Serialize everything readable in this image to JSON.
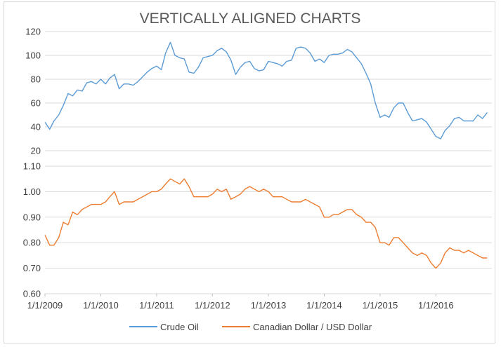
{
  "chart_data": [
    {
      "type": "line",
      "title": "VERTICALLY ALIGNED CHARTS",
      "xlabel": "",
      "ylabel": "",
      "ylim": [
        20,
        120
      ],
      "yticks": [
        "20",
        "40",
        "60",
        "80",
        "100",
        "120"
      ],
      "grid": true,
      "series": [
        {
          "name": "Crude Oil",
          "color": "#5b9bd5",
          "x": [
            "2009-01-01",
            "2009-02-01",
            "2009-03-01",
            "2009-04-01",
            "2009-05-01",
            "2009-06-01",
            "2009-07-01",
            "2009-08-01",
            "2009-09-01",
            "2009-10-01",
            "2009-11-01",
            "2009-12-01",
            "2010-01-01",
            "2010-02-01",
            "2010-03-01",
            "2010-04-01",
            "2010-05-01",
            "2010-06-01",
            "2010-07-01",
            "2010-08-01",
            "2010-09-01",
            "2010-10-01",
            "2010-11-01",
            "2010-12-01",
            "2011-01-01",
            "2011-02-01",
            "2011-03-01",
            "2011-04-01",
            "2011-05-01",
            "2011-06-01",
            "2011-07-01",
            "2011-08-01",
            "2011-09-01",
            "2011-10-01",
            "2011-11-01",
            "2011-12-01",
            "2012-01-01",
            "2012-02-01",
            "2012-03-01",
            "2012-04-01",
            "2012-05-01",
            "2012-06-01",
            "2012-07-01",
            "2012-08-01",
            "2012-09-01",
            "2012-10-01",
            "2012-11-01",
            "2012-12-01",
            "2013-01-01",
            "2013-02-01",
            "2013-03-01",
            "2013-04-01",
            "2013-05-01",
            "2013-06-01",
            "2013-07-01",
            "2013-08-01",
            "2013-09-01",
            "2013-10-01",
            "2013-11-01",
            "2013-12-01",
            "2014-01-01",
            "2014-02-01",
            "2014-03-01",
            "2014-04-01",
            "2014-05-01",
            "2014-06-01",
            "2014-07-01",
            "2014-08-01",
            "2014-09-01",
            "2014-10-01",
            "2014-11-01",
            "2014-12-01",
            "2015-01-01",
            "2015-02-01",
            "2015-03-01",
            "2015-04-01",
            "2015-05-01",
            "2015-06-01",
            "2015-07-01",
            "2015-08-01",
            "2015-09-01",
            "2015-10-01",
            "2015-11-01",
            "2015-12-01",
            "2016-01-01",
            "2016-02-01",
            "2016-03-01",
            "2016-04-01",
            "2016-05-01",
            "2016-06-01",
            "2016-07-01",
            "2016-08-01",
            "2016-09-01",
            "2016-10-01",
            "2016-11-01",
            "2016-12-01"
          ],
          "values": [
            44,
            38,
            45,
            50,
            58,
            68,
            66,
            71,
            70,
            77,
            78,
            76,
            80,
            76,
            81,
            84,
            72,
            76,
            76,
            75,
            78,
            82,
            86,
            89,
            91,
            88,
            102,
            111,
            100,
            98,
            97,
            86,
            85,
            90,
            98,
            99,
            100,
            104,
            106,
            103,
            96,
            84,
            90,
            94,
            95,
            89,
            87,
            88,
            95,
            94,
            93,
            91,
            95,
            96,
            106,
            107,
            106,
            102,
            95,
            97,
            94,
            100,
            101,
            101,
            102,
            105,
            103,
            98,
            93,
            85,
            76,
            60,
            48,
            50,
            48,
            56,
            60,
            60,
            52,
            45,
            46,
            47,
            44,
            38,
            32,
            30,
            37,
            41,
            47,
            48,
            45,
            45,
            45,
            50,
            47,
            52
          ]
        }
      ]
    },
    {
      "type": "line",
      "xlabel": "",
      "ylabel": "",
      "ylim": [
        0.6,
        1.1
      ],
      "yticks": [
        "0.60",
        "0.70",
        "0.80",
        "0.90",
        "1.00",
        "1.10"
      ],
      "xticks": [
        "1/1/2009",
        "1/1/2010",
        "1/1/2011",
        "1/1/2012",
        "1/1/2013",
        "1/1/2014",
        "1/1/2015",
        "1/1/2016"
      ],
      "grid": true,
      "series": [
        {
          "name": "Canadian Dollar / USD Dollar",
          "color": "#ed7d31",
          "x": [
            "2009-01-01",
            "2009-02-01",
            "2009-03-01",
            "2009-04-01",
            "2009-05-01",
            "2009-06-01",
            "2009-07-01",
            "2009-08-01",
            "2009-09-01",
            "2009-10-01",
            "2009-11-01",
            "2009-12-01",
            "2010-01-01",
            "2010-02-01",
            "2010-03-01",
            "2010-04-01",
            "2010-05-01",
            "2010-06-01",
            "2010-07-01",
            "2010-08-01",
            "2010-09-01",
            "2010-10-01",
            "2010-11-01",
            "2010-12-01",
            "2011-01-01",
            "2011-02-01",
            "2011-03-01",
            "2011-04-01",
            "2011-05-01",
            "2011-06-01",
            "2011-07-01",
            "2011-08-01",
            "2011-09-01",
            "2011-10-01",
            "2011-11-01",
            "2011-12-01",
            "2012-01-01",
            "2012-02-01",
            "2012-03-01",
            "2012-04-01",
            "2012-05-01",
            "2012-06-01",
            "2012-07-01",
            "2012-08-01",
            "2012-09-01",
            "2012-10-01",
            "2012-11-01",
            "2012-12-01",
            "2013-01-01",
            "2013-02-01",
            "2013-03-01",
            "2013-04-01",
            "2013-05-01",
            "2013-06-01",
            "2013-07-01",
            "2013-08-01",
            "2013-09-01",
            "2013-10-01",
            "2013-11-01",
            "2013-12-01",
            "2014-01-01",
            "2014-02-01",
            "2014-03-01",
            "2014-04-01",
            "2014-05-01",
            "2014-06-01",
            "2014-07-01",
            "2014-08-01",
            "2014-09-01",
            "2014-10-01",
            "2014-11-01",
            "2014-12-01",
            "2015-01-01",
            "2015-02-01",
            "2015-03-01",
            "2015-04-01",
            "2015-05-01",
            "2015-06-01",
            "2015-07-01",
            "2015-08-01",
            "2015-09-01",
            "2015-10-01",
            "2015-11-01",
            "2015-12-01",
            "2016-01-01",
            "2016-02-01",
            "2016-03-01",
            "2016-04-01",
            "2016-05-01",
            "2016-06-01",
            "2016-07-01",
            "2016-08-01",
            "2016-09-01",
            "2016-10-01",
            "2016-11-01",
            "2016-12-01"
          ],
          "values": [
            0.83,
            0.79,
            0.79,
            0.82,
            0.88,
            0.87,
            0.92,
            0.91,
            0.93,
            0.94,
            0.95,
            0.95,
            0.95,
            0.96,
            0.98,
            1.0,
            0.95,
            0.96,
            0.96,
            0.96,
            0.97,
            0.98,
            0.99,
            1.0,
            1.0,
            1.01,
            1.03,
            1.05,
            1.04,
            1.03,
            1.05,
            1.02,
            0.98,
            0.98,
            0.98,
            0.98,
            0.99,
            1.01,
            1.0,
            1.01,
            0.97,
            0.98,
            0.99,
            1.01,
            1.02,
            1.01,
            1.0,
            1.01,
            1.0,
            0.98,
            0.98,
            0.98,
            0.97,
            0.96,
            0.96,
            0.96,
            0.97,
            0.96,
            0.95,
            0.94,
            0.9,
            0.9,
            0.91,
            0.91,
            0.92,
            0.93,
            0.93,
            0.91,
            0.9,
            0.88,
            0.88,
            0.86,
            0.8,
            0.8,
            0.79,
            0.82,
            0.82,
            0.8,
            0.78,
            0.76,
            0.75,
            0.76,
            0.75,
            0.72,
            0.7,
            0.72,
            0.76,
            0.78,
            0.77,
            0.77,
            0.76,
            0.77,
            0.76,
            0.75,
            0.74,
            0.74
          ]
        }
      ]
    }
  ]
}
